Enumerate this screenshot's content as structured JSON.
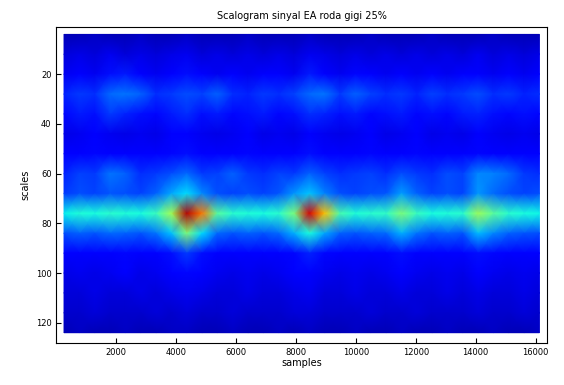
{
  "chart_data": {
    "type": "heatmap",
    "title": "Scalogram sinyal EA roda gigi 25%",
    "x_label": "samples",
    "y_label": "scales",
    "x": [
      256,
      768,
      1280,
      1792,
      2304,
      2816,
      3328,
      3840,
      4352,
      4864,
      5376,
      5888,
      6400,
      6912,
      7424,
      7936,
      8448,
      8960,
      9472,
      9984,
      10496,
      11008,
      11520,
      12032,
      12544,
      13056,
      13568,
      14080,
      14592,
      15104,
      15616,
      16128
    ],
    "y": [
      4,
      12,
      20,
      28,
      36,
      44,
      52,
      60,
      68,
      76,
      84,
      92,
      100,
      108,
      116,
      124
    ],
    "cells": [
      [
        0.5,
        0.5,
        0.6,
        0.5,
        0.5,
        0.6,
        0.5,
        0.5,
        0.6,
        0.5,
        0.5,
        0.5,
        0.6,
        0.5,
        0.5,
        0.5,
        0.6,
        0.5,
        0.5,
        0.5,
        0.6,
        0.5,
        0.5,
        0.5,
        0.6,
        0.5,
        0.5,
        0.5,
        0.6,
        0.5,
        0.5,
        0.5
      ],
      [
        0.8,
        0.9,
        0.8,
        1.0,
        0.8,
        0.9,
        0.8,
        0.9,
        1.0,
        0.8,
        0.9,
        0.8,
        0.9,
        0.8,
        0.9,
        0.8,
        1.0,
        0.9,
        0.8,
        0.9,
        0.8,
        0.9,
        0.8,
        0.9,
        0.8,
        0.9,
        0.8,
        1.0,
        0.8,
        0.9,
        0.8,
        0.9
      ],
      [
        1.0,
        1.2,
        1.0,
        1.4,
        1.5,
        1.1,
        1.0,
        1.2,
        1.4,
        1.1,
        1.0,
        1.2,
        1.0,
        1.1,
        1.2,
        1.0,
        1.5,
        1.2,
        1.0,
        1.3,
        1.1,
        1.0,
        1.2,
        1.0,
        1.1,
        1.0,
        1.2,
        1.1,
        1.0,
        1.2,
        1.0,
        1.1
      ],
      [
        1.6,
        1.8,
        1.7,
        2.3,
        2.4,
        2.2,
        1.7,
        1.8,
        2.0,
        1.9,
        2.2,
        1.7,
        1.6,
        1.8,
        1.7,
        1.9,
        2.3,
        2.4,
        1.8,
        2.2,
        1.9,
        1.7,
        1.8,
        1.6,
        1.9,
        1.7,
        1.8,
        2.0,
        1.7,
        1.8,
        1.6,
        1.7
      ],
      [
        1.3,
        1.5,
        1.4,
        1.8,
        1.6,
        1.4,
        1.3,
        1.5,
        1.7,
        1.4,
        1.5,
        1.3,
        1.4,
        1.5,
        1.3,
        1.4,
        1.7,
        1.6,
        1.4,
        1.5,
        1.3,
        1.4,
        1.5,
        1.3,
        1.4,
        1.3,
        1.5,
        1.6,
        1.4,
        1.3,
        1.4,
        1.3
      ],
      [
        0.9,
        1.0,
        1.1,
        1.0,
        0.9,
        1.0,
        0.9,
        1.1,
        1.2,
        1.0,
        0.9,
        1.0,
        1.1,
        0.9,
        1.0,
        0.9,
        1.2,
        1.0,
        0.9,
        1.0,
        1.1,
        0.9,
        1.0,
        1.1,
        0.9,
        1.0,
        0.9,
        1.1,
        1.0,
        0.9,
        1.0,
        0.9
      ],
      [
        1.1,
        1.2,
        1.3,
        1.2,
        1.1,
        1.2,
        1.1,
        1.3,
        1.4,
        1.2,
        1.1,
        1.2,
        1.3,
        1.1,
        1.2,
        1.1,
        1.4,
        1.2,
        1.1,
        1.2,
        1.3,
        1.1,
        1.2,
        1.3,
        1.1,
        1.2,
        1.1,
        1.3,
        1.2,
        1.1,
        1.2,
        1.1
      ],
      [
        1.6,
        1.9,
        1.8,
        2.4,
        2.2,
        1.7,
        1.8,
        2.0,
        2.3,
        1.8,
        1.9,
        2.2,
        1.8,
        1.7,
        1.9,
        1.8,
        2.2,
        1.9,
        1.7,
        1.8,
        1.9,
        1.7,
        2.0,
        1.8,
        1.7,
        2.0,
        1.9,
        2.6,
        2.5,
        2.3,
        1.8,
        1.7
      ],
      [
        1.8,
        2.0,
        1.9,
        2.1,
        2.0,
        1.9,
        2.2,
        2.9,
        3.4,
        2.6,
        2.0,
        1.9,
        2.0,
        1.9,
        2.1,
        2.7,
        3.2,
        2.5,
        2.0,
        1.9,
        2.0,
        2.1,
        2.8,
        2.2,
        1.9,
        2.0,
        1.9,
        2.7,
        2.3,
        2.0,
        1.9,
        2.0
      ],
      [
        3.6,
        3.9,
        3.8,
        4.0,
        3.9,
        3.8,
        4.2,
        5.5,
        9.5,
        7.8,
        4.6,
        4.0,
        3.9,
        3.8,
        4.0,
        5.0,
        9.2,
        7.0,
        4.4,
        3.9,
        4.0,
        4.1,
        5.0,
        4.2,
        3.8,
        3.9,
        4.0,
        5.4,
        4.6,
        4.0,
        3.8,
        3.7
      ],
      [
        2.0,
        2.2,
        2.1,
        2.3,
        2.2,
        2.1,
        2.4,
        3.2,
        5.0,
        3.4,
        2.3,
        2.1,
        2.2,
        2.1,
        2.3,
        3.0,
        3.8,
        2.9,
        2.2,
        2.1,
        2.2,
        2.3,
        3.0,
        2.4,
        2.1,
        2.2,
        2.1,
        3.1,
        2.6,
        2.2,
        2.1,
        2.0
      ],
      [
        1.1,
        1.2,
        1.1,
        1.2,
        1.3,
        1.1,
        1.2,
        1.4,
        1.8,
        1.4,
        1.2,
        1.1,
        1.2,
        1.1,
        1.2,
        1.3,
        1.6,
        1.3,
        1.2,
        1.1,
        1.2,
        1.1,
        1.4,
        1.2,
        1.1,
        1.2,
        1.1,
        1.4,
        1.3,
        1.1,
        1.2,
        1.1
      ],
      [
        0.9,
        1.0,
        0.9,
        1.0,
        1.1,
        0.9,
        1.0,
        1.1,
        1.3,
        1.1,
        1.0,
        0.9,
        1.0,
        0.9,
        1.0,
        1.1,
        1.2,
        1.0,
        0.9,
        1.0,
        0.9,
        1.0,
        1.1,
        1.0,
        0.9,
        1.0,
        0.9,
        1.1,
        1.0,
        0.9,
        1.0,
        0.9
      ],
      [
        0.8,
        0.8,
        0.9,
        0.8,
        0.8,
        0.9,
        0.8,
        0.9,
        1.0,
        0.9,
        0.8,
        0.8,
        0.9,
        0.8,
        0.8,
        0.9,
        1.0,
        0.8,
        0.8,
        0.9,
        0.8,
        0.8,
        0.9,
        0.8,
        0.8,
        0.9,
        0.8,
        0.9,
        0.8,
        0.8,
        0.9,
        0.8
      ],
      [
        0.7,
        0.7,
        0.8,
        0.7,
        0.7,
        0.7,
        0.8,
        0.7,
        0.8,
        0.7,
        0.7,
        0.8,
        0.7,
        0.7,
        0.7,
        0.8,
        0.8,
        0.7,
        0.7,
        0.7,
        0.8,
        0.7,
        0.7,
        0.8,
        0.7,
        0.7,
        0.7,
        0.8,
        0.7,
        0.7,
        0.8,
        0.7
      ],
      [
        0.5,
        0.6,
        0.5,
        0.5,
        0.6,
        0.5,
        0.5,
        0.6,
        0.6,
        0.5,
        0.5,
        0.6,
        0.5,
        0.5,
        0.6,
        0.5,
        0.6,
        0.5,
        0.5,
        0.6,
        0.5,
        0.5,
        0.6,
        0.5,
        0.5,
        0.6,
        0.5,
        0.5,
        0.6,
        0.5,
        0.5,
        0.6
      ]
    ],
    "color_range": [
      0,
      10
    ],
    "xlim": [
      1,
      16384
    ],
    "xticks": [
      2000,
      4000,
      6000,
      8000,
      10000,
      12000,
      14000,
      16000
    ],
    "ylim": [
      128,
      1
    ],
    "yticks": [
      20,
      40,
      60,
      80,
      100,
      120
    ]
  }
}
